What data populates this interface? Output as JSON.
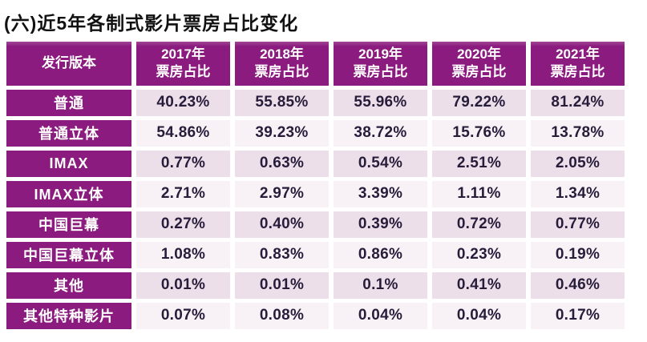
{
  "title": "(六)近5年各制式影片票房占比变化",
  "colors": {
    "accent_purple": "#8b1b7e",
    "row_odd_bg": "#ecdfea",
    "row_even_bg": "#f8f1f6",
    "value_text": "#271d3a",
    "header_text": "#ffffff",
    "title_text": "#111111"
  },
  "table": {
    "header": {
      "label_column": "发行版本",
      "metric_line": "票房占比",
      "year_columns": [
        "2017年",
        "2018年",
        "2019年",
        "2020年",
        "2021年"
      ]
    },
    "rows": [
      {
        "label": "普通",
        "values": [
          "40.23%",
          "55.85%",
          "55.96%",
          "79.22%",
          "81.24%"
        ]
      },
      {
        "label": "普通立体",
        "values": [
          "54.86%",
          "39.23%",
          "38.72%",
          "15.76%",
          "13.78%"
        ]
      },
      {
        "label": "IMAX",
        "values": [
          "0.77%",
          "0.63%",
          "0.54%",
          "2.51%",
          "2.05%"
        ]
      },
      {
        "label": "IMAX立体",
        "values": [
          "2.71%",
          "2.97%",
          "3.39%",
          "1.11%",
          "1.34%"
        ]
      },
      {
        "label": "中国巨幕",
        "values": [
          "0.27%",
          "0.40%",
          "0.39%",
          "0.72%",
          "0.77%"
        ]
      },
      {
        "label": "中国巨幕立体",
        "values": [
          "1.08%",
          "0.83%",
          "0.86%",
          "0.23%",
          "0.19%"
        ]
      },
      {
        "label": "其他",
        "values": [
          "0.01%",
          "0.01%",
          "0.1%",
          "0.41%",
          "0.46%"
        ]
      },
      {
        "label": "其他特种影片",
        "values": [
          "0.07%",
          "0.08%",
          "0.04%",
          "0.04%",
          "0.17%"
        ]
      }
    ]
  },
  "chart_data": {
    "type": "table",
    "title": "(六)近5年各制式影片票房占比变化",
    "columns": [
      "发行版本",
      "2017年票房占比",
      "2018年票房占比",
      "2019年票房占比",
      "2020年票房占比",
      "2021年票房占比"
    ],
    "categories": [
      "2017",
      "2018",
      "2019",
      "2020",
      "2021"
    ],
    "unit": "percent",
    "series": [
      {
        "name": "普通",
        "values": [
          40.23,
          55.85,
          55.96,
          79.22,
          81.24
        ]
      },
      {
        "name": "普通立体",
        "values": [
          54.86,
          39.23,
          38.72,
          15.76,
          13.78
        ]
      },
      {
        "name": "IMAX",
        "values": [
          0.77,
          0.63,
          0.54,
          2.51,
          2.05
        ]
      },
      {
        "name": "IMAX立体",
        "values": [
          2.71,
          2.97,
          3.39,
          1.11,
          1.34
        ]
      },
      {
        "name": "中国巨幕",
        "values": [
          0.27,
          0.4,
          0.39,
          0.72,
          0.77
        ]
      },
      {
        "name": "中国巨幕立体",
        "values": [
          1.08,
          0.83,
          0.86,
          0.23,
          0.19
        ]
      },
      {
        "name": "其他",
        "values": [
          0.01,
          0.01,
          0.1,
          0.41,
          0.46
        ]
      },
      {
        "name": "其他特种影片",
        "values": [
          0.07,
          0.08,
          0.04,
          0.04,
          0.17
        ]
      }
    ]
  }
}
